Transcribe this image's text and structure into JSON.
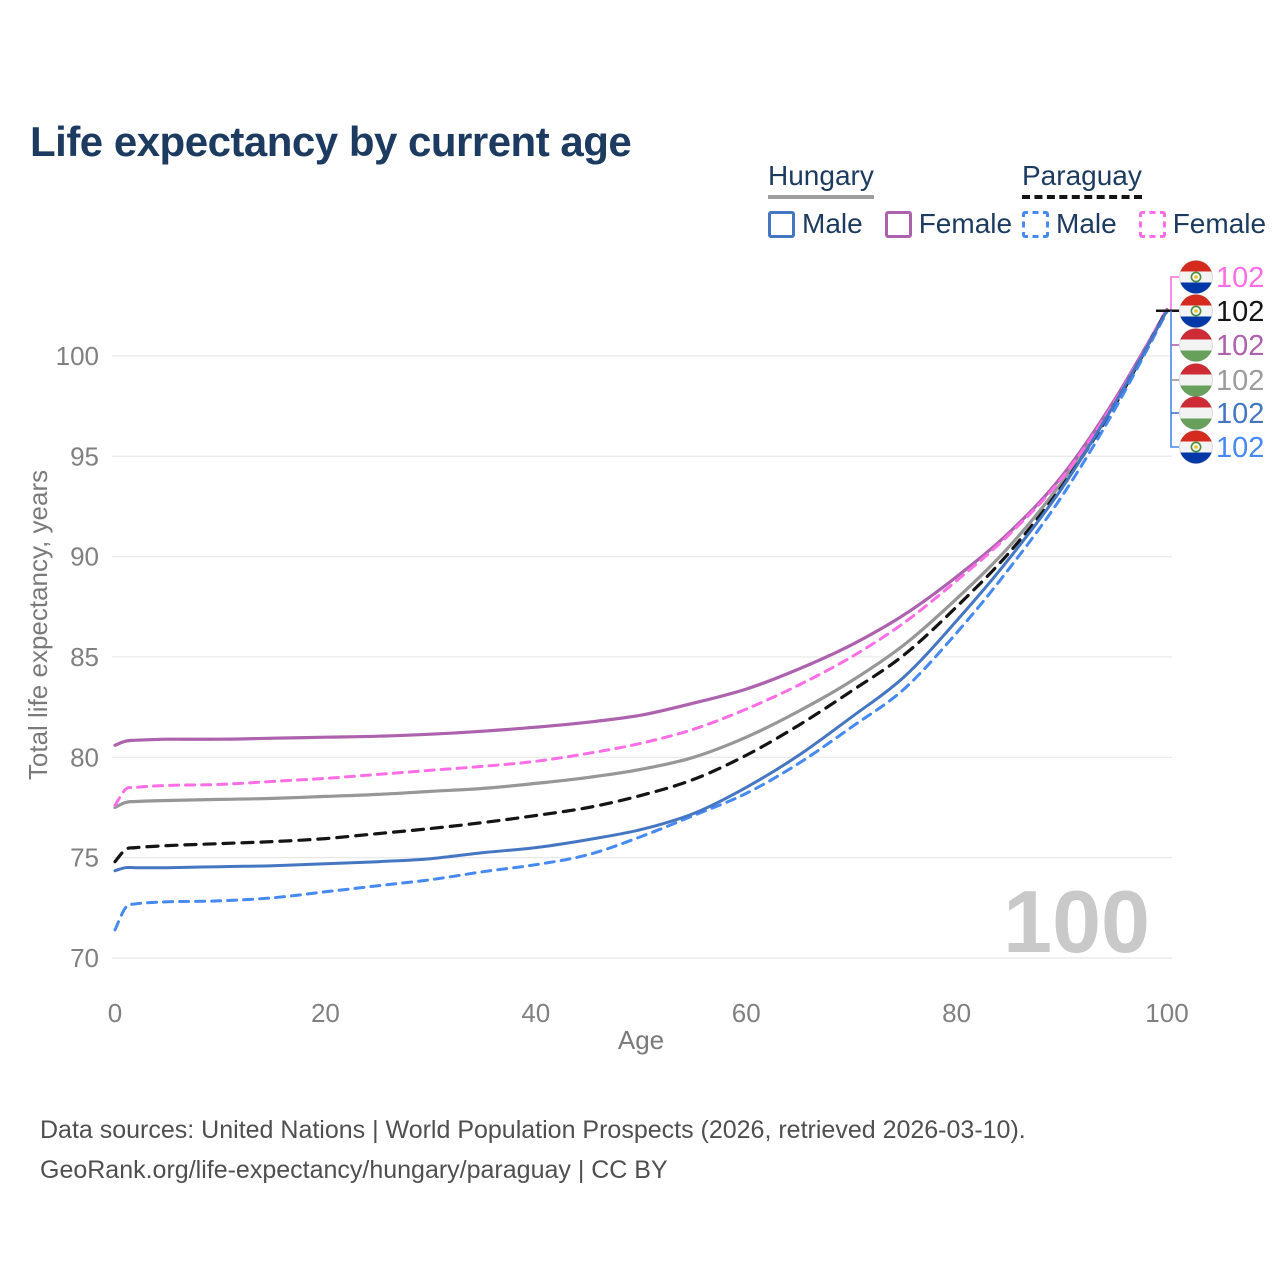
{
  "title": "Life expectancy by current age",
  "age_counter_watermark": "100",
  "legend": {
    "groups": [
      {
        "label": "Hungary",
        "line_style": "solid",
        "line_color": "#9e9e9e",
        "items": [
          {
            "label": "Male",
            "color": "#4576c2",
            "dashed": false
          },
          {
            "label": "Female",
            "color": "#ad62ad",
            "dashed": false
          }
        ]
      },
      {
        "label": "Paraguay",
        "line_style": "dashed",
        "line_color": "#141414",
        "items": [
          {
            "label": "Male",
            "color": "#4689f0",
            "dashed": true
          },
          {
            "label": "Female",
            "color": "#fc6ee5",
            "dashed": true
          }
        ]
      }
    ]
  },
  "footer": {
    "line1": "Data sources: United Nations | World Population Prospects (2026, retrieved 2026-03-10).",
    "line2": "GeoRank.org/life-expectancy/hungary/paraguay | CC BY"
  },
  "flags": {
    "hungary": {
      "stripes": [
        "#ce2b37",
        "#f3f3f3",
        "#66a05b"
      ]
    },
    "paraguay": {
      "stripes": [
        "#d52b1e",
        "#f3f3f3",
        "#0038a8"
      ],
      "emblem_ring": "#4e8c3f",
      "emblem_center": "#e8c43a"
    }
  },
  "chart_data": {
    "type": "line",
    "title": "Life expectancy by current age",
    "xlabel": "Age",
    "ylabel": "Total life expectancy, years",
    "xlim": [
      0,
      100
    ],
    "ylim": [
      70,
      103.5
    ],
    "x_ticks": [
      0,
      20,
      40,
      60,
      80,
      100
    ],
    "y_ticks": [
      70,
      75,
      80,
      85,
      90,
      95,
      100
    ],
    "grid": "horizontal",
    "legend_position": "top-right",
    "x": [
      0,
      1,
      2,
      5,
      10,
      15,
      20,
      25,
      30,
      35,
      40,
      45,
      50,
      55,
      60,
      65,
      70,
      75,
      80,
      85,
      90,
      95,
      100
    ],
    "series": [
      {
        "id": "hungary_both",
        "name": "Hungary Both sexes",
        "country": "Hungary",
        "sex": "Both",
        "color": "#979797",
        "dash": null,
        "width": 3.2,
        "values": [
          77.5,
          77.75,
          77.8,
          77.85,
          77.9,
          77.95,
          78.05,
          78.15,
          78.3,
          78.45,
          78.7,
          79.0,
          79.4,
          80.0,
          81.0,
          82.3,
          83.8,
          85.6,
          87.9,
          90.5,
          93.7,
          97.6,
          102.3
        ]
      },
      {
        "id": "hungary_female",
        "name": "Hungary Female",
        "country": "Hungary",
        "sex": "Female",
        "color": "#ad62ad",
        "dash": null,
        "width": 3.2,
        "values": [
          80.6,
          80.8,
          80.85,
          80.9,
          80.9,
          80.95,
          81.0,
          81.05,
          81.15,
          81.3,
          81.5,
          81.75,
          82.1,
          82.7,
          83.4,
          84.4,
          85.6,
          87.1,
          89.0,
          91.2,
          94.0,
          97.8,
          102.3
        ]
      },
      {
        "id": "paraguay_female",
        "name": "Paraguay Female",
        "country": "Paraguay",
        "sex": "Female",
        "color": "#fc6ee5",
        "dash": "9 7",
        "width": 3,
        "values": [
          77.6,
          78.4,
          78.5,
          78.6,
          78.65,
          78.8,
          78.95,
          79.15,
          79.35,
          79.55,
          79.8,
          80.2,
          80.7,
          81.4,
          82.4,
          83.6,
          85.0,
          86.7,
          88.8,
          91.1,
          93.9,
          97.7,
          102.35
        ]
      },
      {
        "id": "paraguay_both",
        "name": "Paraguay Both sexes",
        "country": "Paraguay",
        "sex": "Both",
        "color": "#141414",
        "dash": "11 8",
        "width": 3.2,
        "values": [
          74.8,
          75.4,
          75.5,
          75.6,
          75.7,
          75.8,
          75.95,
          76.2,
          76.45,
          76.75,
          77.1,
          77.5,
          78.1,
          78.9,
          80.1,
          81.6,
          83.3,
          85.1,
          87.5,
          90.2,
          93.5,
          97.5,
          102.3
        ]
      },
      {
        "id": "paraguay_male",
        "name": "Paraguay Male",
        "country": "Paraguay",
        "sex": "Male",
        "color": "#4689f0",
        "dash": "9 7",
        "width": 3,
        "values": [
          71.4,
          72.5,
          72.7,
          72.8,
          72.85,
          73.0,
          73.3,
          73.6,
          73.9,
          74.3,
          74.65,
          75.15,
          76.05,
          77.1,
          78.2,
          79.7,
          81.5,
          83.4,
          86.2,
          89.4,
          93.0,
          97.3,
          102.2
        ]
      },
      {
        "id": "hungary_male",
        "name": "Hungary Male",
        "country": "Hungary",
        "sex": "Male",
        "color": "#4576c2",
        "dash": null,
        "width": 3,
        "values": [
          74.35,
          74.5,
          74.5,
          74.5,
          74.55,
          74.6,
          74.7,
          74.8,
          74.95,
          75.25,
          75.5,
          75.9,
          76.4,
          77.2,
          78.5,
          80.1,
          82.0,
          84.0,
          86.8,
          89.9,
          93.4,
          97.6,
          102.25
        ]
      }
    ],
    "end_labels": [
      {
        "series_id": "paraguay_female",
        "flag": "paraguay",
        "value": "102",
        "color": "#fc6ee5"
      },
      {
        "series_id": "paraguay_both",
        "flag": "paraguay",
        "value": "102",
        "color": "#141414"
      },
      {
        "series_id": "hungary_female",
        "flag": "hungary",
        "value": "102",
        "color": "#ad62ad"
      },
      {
        "series_id": "hungary_both",
        "flag": "hungary",
        "value": "102",
        "color": "#9c9c9c"
      },
      {
        "series_id": "hungary_male",
        "flag": "hungary",
        "value": "102",
        "color": "#4576c2"
      },
      {
        "series_id": "paraguay_male",
        "flag": "paraguay",
        "value": "102",
        "color": "#4689f0"
      }
    ]
  }
}
